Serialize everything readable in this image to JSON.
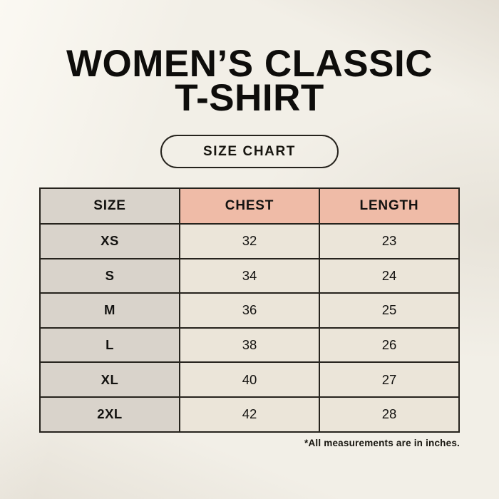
{
  "page": {
    "title_line1": "WOMEN’S CLASSIC",
    "title_line2": "T-SHIRT",
    "badge_label": "SIZE CHART",
    "footnote": "*All measurements are in inches."
  },
  "chart_data": {
    "type": "table",
    "title": "WOMEN’S CLASSIC T-SHIRT",
    "subtitle": "SIZE CHART",
    "columns": [
      "SIZE",
      "CHEST",
      "LENGTH"
    ],
    "rows": [
      [
        "XS",
        "32",
        "23"
      ],
      [
        "S",
        "34",
        "24"
      ],
      [
        "M",
        "36",
        "25"
      ],
      [
        "L",
        "38",
        "26"
      ],
      [
        "XL",
        "40",
        "27"
      ],
      [
        "2XL",
        "42",
        "28"
      ]
    ],
    "units": "inches",
    "units_note": "*All measurements are in inches."
  },
  "colors": {
    "background": "#f2efe7",
    "header_size_bg": "#d9d3cb",
    "header_measure_bg": "#efbba7",
    "cell_size_bg": "#d9d3cb",
    "cell_value_bg": "#ebe5d9",
    "border": "#26231d",
    "text": "#131210"
  }
}
